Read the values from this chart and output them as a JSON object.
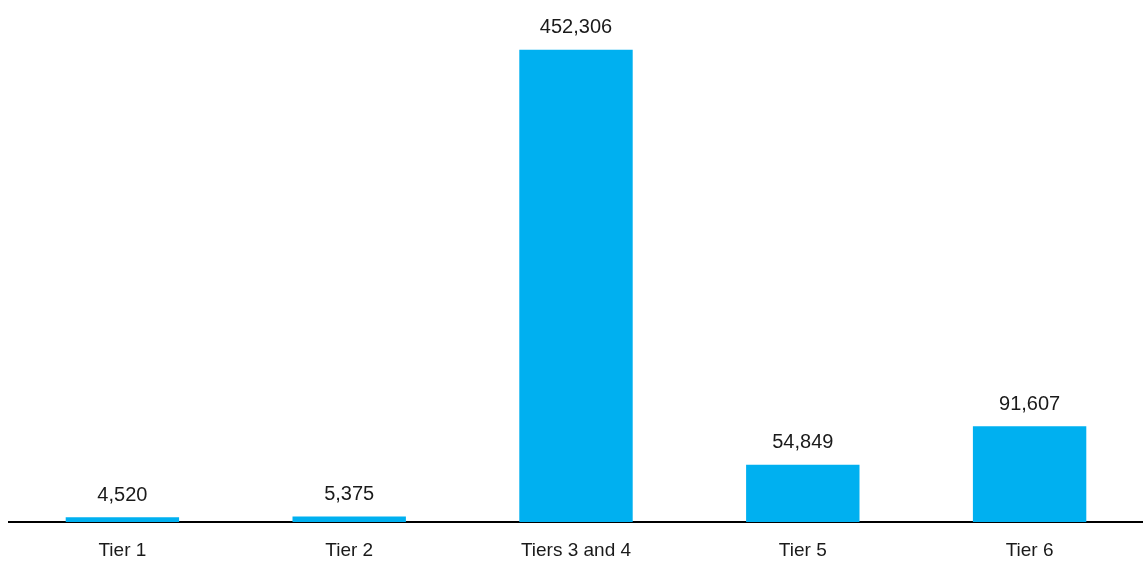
{
  "chart_data": {
    "type": "bar",
    "categories": [
      "Tier 1",
      "Tier 2",
      "Tiers 3 and 4",
      "Tier 5",
      "Tier 6"
    ],
    "values": [
      4520,
      5375,
      452306,
      54849,
      91607
    ],
    "value_labels": [
      "4,520",
      "5,375",
      "452,306",
      "54,849",
      "91,607"
    ],
    "color": "#00b0f0",
    "tick_labels": "x",
    "grid": false,
    "legend": false
  }
}
